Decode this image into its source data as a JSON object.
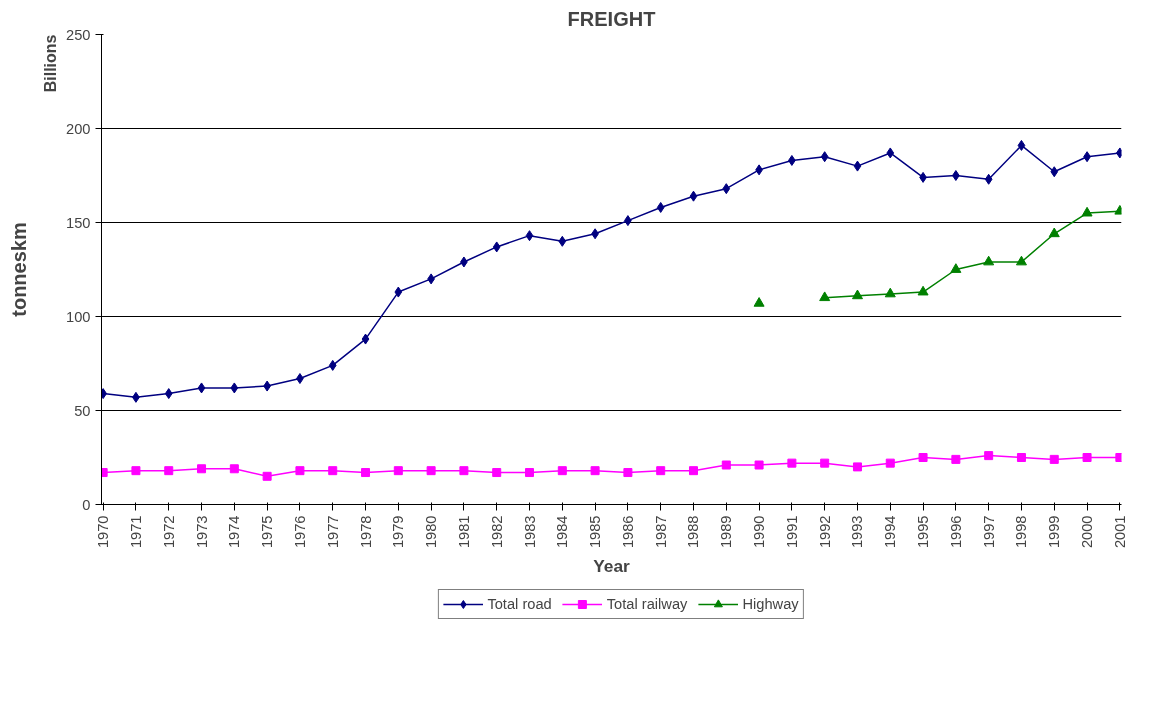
{
  "chart_data": {
    "type": "line",
    "title": "FREIGHT",
    "xlabel": "Year",
    "ylabel": "tonneskm",
    "annotations": [
      "Billions"
    ],
    "categories": [
      "1970",
      "1971",
      "1972",
      "1973",
      "1974",
      "1975",
      "1976",
      "1977",
      "1978",
      "1979",
      "1980",
      "1981",
      "1982",
      "1983",
      "1984",
      "1985",
      "1986",
      "1987",
      "1988",
      "1989",
      "1990",
      "1991",
      "1992",
      "1993",
      "1994",
      "1995",
      "1996",
      "1997",
      "1998",
      "1999",
      "2000",
      "2001"
    ],
    "series": [
      {
        "name": "Total road",
        "color": "#000080",
        "marker": "diamond",
        "values": [
          59,
          57,
          59,
          62,
          62,
          63,
          67,
          74,
          88,
          113,
          120,
          129,
          137,
          143,
          140,
          144,
          151,
          158,
          164,
          168,
          178,
          183,
          185,
          180,
          187,
          174,
          175,
          173,
          191,
          177,
          185,
          187
        ]
      },
      {
        "name": "Total railway",
        "color": "#ff00ff",
        "marker": "square",
        "values": [
          17,
          18,
          18,
          19,
          19,
          15,
          18,
          18,
          17,
          18,
          18,
          18,
          17,
          17,
          18,
          18,
          17,
          18,
          18,
          21,
          21,
          22,
          22,
          20,
          22,
          25,
          24,
          26,
          25,
          24,
          25,
          25
        ]
      },
      {
        "name": "Highway",
        "color": "#008000",
        "marker": "triangle",
        "values": [
          null,
          null,
          null,
          null,
          null,
          null,
          null,
          null,
          null,
          null,
          null,
          null,
          null,
          null,
          null,
          null,
          null,
          null,
          null,
          null,
          107,
          null,
          110,
          111,
          112,
          113,
          125,
          129,
          129,
          144,
          155,
          156
        ]
      }
    ],
    "ylim": [
      0,
      250
    ],
    "yticks": [
      0,
      50,
      100,
      150,
      200,
      250
    ],
    "grid": "y",
    "legend": "bottom",
    "line_style": "solid"
  }
}
